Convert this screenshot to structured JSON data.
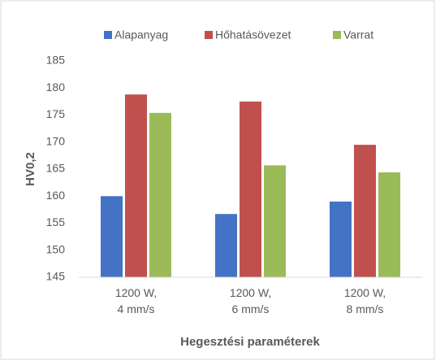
{
  "chart_data": {
    "type": "bar",
    "categories": [
      "1200 W,\n4 mm/s",
      "1200 W,\n6 mm/s",
      "1200 W,\n8 mm/s"
    ],
    "series": [
      {
        "name": "Alapanyag",
        "color": "#4472c4",
        "values": [
          160,
          156.7,
          159
        ]
      },
      {
        "name": "Hőhatásövezet",
        "color": "#c0504d",
        "values": [
          178.8,
          177.5,
          169.5
        ]
      },
      {
        "name": "Varrat",
        "color": "#9bbb59",
        "values": [
          175.4,
          165.7,
          164.4
        ]
      }
    ],
    "ylabel": "HV0,2",
    "xlabel": "Hegesztési paraméterek",
    "ylim": [
      145,
      185
    ],
    "yticks": [
      145,
      150,
      155,
      160,
      165,
      170,
      175,
      180,
      185
    ],
    "grid": false,
    "legend": "top"
  }
}
